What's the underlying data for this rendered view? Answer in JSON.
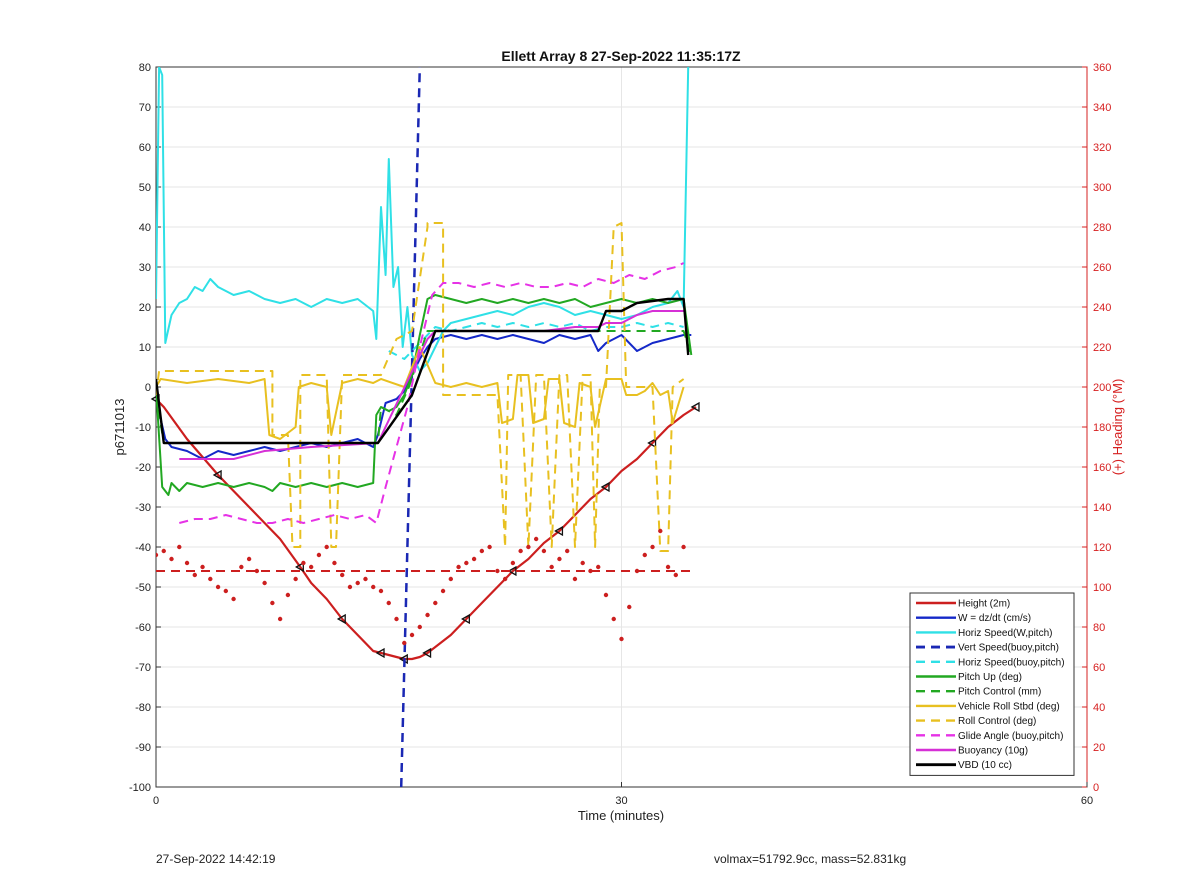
{
  "footer": {
    "timestamp": "27-Sep-2022 14:42:19",
    "summary": "volmax=51792.9cc, mass=52.831kg"
  },
  "chart_data": {
    "type": "line",
    "title": "Ellett Array 8 27-Sep-2022 11:35:17Z",
    "xlabel": "Time (minutes)",
    "ylabel": "p6711013",
    "ylabel_right": "(+) Heading (°M)",
    "xlim": [
      0,
      60
    ],
    "ylim": [
      -100,
      80
    ],
    "ylim_right": [
      0,
      360
    ],
    "xticks": [
      0,
      30,
      60
    ],
    "yticks": [
      -100,
      -90,
      -80,
      -70,
      -60,
      -50,
      -40,
      -30,
      -20,
      -10,
      0,
      10,
      20,
      30,
      40,
      50,
      60,
      70,
      80
    ],
    "yticks_right": [
      0,
      20,
      40,
      60,
      80,
      100,
      120,
      140,
      160,
      180,
      200,
      220,
      240,
      260,
      280,
      300,
      320,
      340,
      360
    ],
    "grid": true,
    "legend_position": "bottom-right",
    "axis_color_right": "#d62020",
    "series": [
      {
        "name": "Height (2m)",
        "color": "#cc1f1f",
        "style": "solid",
        "width": 2.2,
        "markers": "triangle",
        "x": [
          0,
          0.5,
          2,
          4,
          6,
          8,
          9.3,
          10,
          11,
          12,
          13,
          14,
          14.5,
          15,
          15.5,
          16,
          16.5,
          17,
          17.5,
          18,
          19,
          20,
          21,
          22,
          23,
          24,
          25,
          26,
          27,
          28,
          29,
          30,
          31,
          32,
          33,
          34,
          34.8
        ],
        "y": [
          -3,
          -5,
          -13,
          -22,
          -30,
          -38,
          -45,
          -49,
          -53,
          -58,
          -62,
          -66,
          -66.5,
          -67,
          -67.5,
          -68,
          -68,
          -67.5,
          -66.5,
          -65,
          -62,
          -58,
          -54,
          -50,
          -46,
          -43,
          -39,
          -36,
          -32,
          -28,
          -25,
          -21,
          -18,
          -14,
          -10,
          -7,
          -5
        ]
      },
      {
        "name": "W = dz/dt (cm/s)",
        "color": "#1428c8",
        "style": "solid",
        "width": 2,
        "x": [
          0,
          0.3,
          0.6,
          1,
          2,
          3,
          4,
          5,
          6,
          7,
          8,
          9,
          10,
          11,
          12,
          13,
          14,
          14.3,
          14.8,
          15.5,
          16,
          16.5,
          17,
          17.5,
          18,
          19,
          20,
          21,
          22,
          23,
          24,
          25,
          26,
          27,
          28,
          28.5,
          29,
          30,
          31,
          32,
          33,
          34,
          34.5
        ],
        "y": [
          1,
          -8,
          -13,
          -15,
          -16,
          -18,
          -16,
          -17,
          -16,
          -15,
          -16,
          -15,
          -14,
          -15,
          -14,
          -13,
          -15,
          -12,
          -4,
          -3,
          -1,
          3,
          7,
          10,
          12,
          13,
          12,
          13,
          12,
          13,
          12,
          11,
          13,
          12,
          13,
          9,
          11,
          13,
          9,
          11,
          12,
          13,
          13
        ]
      },
      {
        "name": "Horiz Speed(W,pitch)",
        "color": "#2fe0e6",
        "style": "solid",
        "width": 2,
        "x": [
          0,
          0.2,
          0.4,
          0.6,
          1,
          1.5,
          2,
          2.5,
          3,
          3.5,
          4,
          5,
          6,
          7,
          8,
          9,
          10,
          11,
          12,
          13,
          14,
          14.2,
          14.5,
          14.8,
          15,
          15.3,
          15.6,
          15.9,
          16.2,
          16.5,
          17,
          17.5,
          18,
          18.5,
          19,
          20,
          21,
          22,
          23,
          24,
          25,
          26,
          27,
          28,
          29,
          30,
          31,
          32,
          33,
          33.6,
          34,
          34.3
        ],
        "y": [
          22,
          80,
          78,
          11,
          18,
          21,
          22,
          25,
          24,
          27,
          25,
          23,
          24,
          22,
          21,
          22,
          20,
          22,
          21,
          22,
          19,
          12,
          45,
          28,
          57,
          25,
          30,
          10,
          20,
          8,
          4,
          6,
          10,
          14,
          16,
          17,
          18,
          19,
          18,
          20,
          21,
          20,
          18,
          19,
          18,
          17,
          18,
          20,
          21,
          24,
          20,
          80
        ]
      },
      {
        "name": "Vert Speed(buoy,pitch)",
        "color": "#1a28b4",
        "style": "dashed",
        "width": 2.5,
        "x": [
          15.8,
          16.2,
          16.6,
          17
        ],
        "y": [
          -100,
          -40,
          20,
          80
        ]
      },
      {
        "name": "Horiz Speed(buoy,pitch)",
        "color": "#2fe0e6",
        "style": "dashed",
        "width": 2,
        "x": [
          15,
          15.5,
          16,
          16.5,
          17,
          17.5,
          18,
          19,
          20,
          21,
          22,
          23,
          24,
          25,
          26,
          27,
          28,
          29,
          30,
          31,
          32,
          33,
          34
        ],
        "y": [
          9,
          8,
          7,
          9,
          11,
          13,
          15,
          14,
          15,
          16,
          15,
          16,
          15,
          16,
          15,
          16,
          14,
          15,
          15,
          16,
          15,
          16,
          15
        ]
      },
      {
        "name": "Pitch Up (deg)",
        "color": "#22a822",
        "style": "solid",
        "width": 2,
        "x": [
          0,
          0.4,
          0.8,
          1,
          1.5,
          2,
          3,
          4,
          5,
          6,
          7,
          7.5,
          8,
          9,
          10,
          11,
          12,
          13,
          14,
          14.2,
          14.5,
          15,
          15.5,
          16,
          16.5,
          17,
          17.5,
          18,
          19,
          20,
          21,
          22,
          23,
          24,
          25,
          26,
          27,
          28,
          29,
          30,
          31,
          32,
          33,
          34,
          34.5
        ],
        "y": [
          0,
          -25,
          -27,
          -24,
          -26,
          -24,
          -25,
          -24,
          -25,
          -24,
          -25,
          -26,
          -24,
          -25,
          -24,
          -25,
          -24,
          -25,
          -24,
          -7,
          -5,
          -6,
          -5,
          -2,
          3,
          13,
          22,
          23,
          22,
          21,
          22,
          21,
          22,
          21,
          22,
          21,
          22,
          20,
          21,
          22,
          21,
          22,
          21,
          22,
          8
        ]
      },
      {
        "name": "Pitch Control (mm)",
        "color": "#22a822",
        "style": "dashed",
        "width": 2,
        "x": [
          0,
          0.5,
          14.3,
          14.5,
          15.5,
          16.3,
          17.5,
          34,
          34.5
        ],
        "y": [
          -2,
          -14,
          -14,
          -5,
          -7,
          0,
          14,
          14,
          8
        ]
      },
      {
        "name": "Vehicle Roll Stbd (deg)",
        "color": "#e8c020",
        "style": "solid",
        "width": 2,
        "x": [
          0,
          0.3,
          2,
          4,
          6,
          7,
          7.3,
          8,
          9,
          9.2,
          10,
          11,
          11.3,
          12,
          13,
          14,
          14.5,
          16,
          17,
          18,
          19,
          20,
          21,
          22,
          22.3,
          23,
          23.3,
          24,
          24.3,
          25,
          25.3,
          26,
          26.3,
          27,
          27.3,
          28,
          28.3,
          29,
          30,
          30.3,
          31,
          31.5,
          32,
          32.5,
          33,
          33.3,
          34
        ],
        "y": [
          0,
          2,
          1,
          2,
          1,
          2,
          -12,
          -13,
          -10,
          0,
          1,
          0,
          -12,
          1,
          2,
          1,
          2,
          0,
          10,
          1,
          0,
          1,
          0,
          1,
          -9,
          -8,
          3,
          3,
          -9,
          -8,
          2,
          2,
          -9,
          -10,
          1,
          0,
          -10,
          2,
          2,
          -2,
          -2,
          -1,
          1,
          -2,
          -1,
          -9,
          0
        ]
      },
      {
        "name": "Roll Control (deg)",
        "color": "#e8c020",
        "style": "dashed",
        "width": 2,
        "x": [
          0,
          0.2,
          7.5,
          7.5,
          8.5,
          8.8,
          9.3,
          9.3,
          10,
          11,
          11.3,
          11.6,
          12,
          14.5,
          15.5,
          16.5,
          17.5,
          17.5,
          18.5,
          18.5,
          19,
          19.5,
          22,
          22.5,
          22.7,
          23.5,
          24,
          24.5,
          25,
          25.5,
          26,
          26.5,
          27,
          27.5,
          28,
          28.3,
          28.6,
          29,
          29.5,
          30,
          30.3,
          32,
          32.5,
          33,
          33.3,
          34
        ],
        "y": [
          -2,
          4,
          4,
          -12,
          -12,
          -40,
          -40,
          3,
          3,
          3,
          -40,
          -40,
          3,
          3,
          12,
          14,
          40,
          41,
          41,
          -2,
          -2,
          -2,
          -2,
          -40,
          3,
          3,
          -40,
          3,
          3,
          -40,
          3,
          3,
          -40,
          3,
          3,
          -40,
          0,
          0,
          40,
          41,
          0,
          0,
          -41,
          -41,
          0,
          2
        ]
      },
      {
        "name": "Glide Angle (buoy,pitch)",
        "color": "#e632e6",
        "style": "dashed",
        "width": 2,
        "x": [
          1.5,
          2.5,
          3.5,
          4.5,
          5.5,
          6.5,
          7.5,
          8.5,
          9.5,
          10.5,
          11.5,
          12.5,
          13.5,
          14.2,
          14.8,
          15.5,
          16.2,
          17,
          17.8,
          18.5,
          19.5,
          20.5,
          21.5,
          22.5,
          23.5,
          24.5,
          25.5,
          26.5,
          27.5,
          28.5,
          29.5,
          30.5,
          31.5,
          32.5,
          33.5,
          34
        ],
        "y": [
          -34,
          -33,
          -33,
          -32,
          -33,
          -34,
          -34,
          -33,
          -34,
          -33,
          -32,
          -33,
          -32,
          -34,
          -25,
          -15,
          -5,
          10,
          23,
          26,
          26,
          25,
          26,
          25,
          26,
          25,
          25,
          26,
          25,
          27,
          26,
          28,
          27,
          29,
          30,
          31
        ]
      },
      {
        "name": "Buoyancy (10g)",
        "color": "#d630d6",
        "style": "solid",
        "width": 2,
        "x": [
          1.5,
          5,
          7,
          10,
          14.3,
          14.3,
          17.5,
          18,
          20,
          23,
          25,
          27,
          28.5,
          29,
          30,
          31,
          32,
          33,
          34
        ],
        "y": [
          -18,
          -18,
          -16,
          -15,
          -14,
          -14,
          12,
          14,
          14,
          14,
          14,
          15,
          15,
          16,
          16,
          18,
          19,
          19,
          19
        ]
      },
      {
        "name": "VBD (10 cc)",
        "color": "#000000",
        "style": "solid",
        "width": 2.4,
        "x": [
          0,
          0.5,
          14.3,
          14.3,
          16.5,
          18,
          20,
          28.5,
          29,
          30,
          31,
          33,
          34,
          34.3
        ],
        "y": [
          2,
          -14,
          -14,
          -14,
          -2,
          14,
          14,
          14,
          19,
          19,
          21,
          22,
          22,
          8
        ]
      },
      {
        "name": "",
        "axis": "right",
        "color": "#cc1f1f",
        "style": "dashed",
        "width": 2,
        "legend": false,
        "x": [
          0,
          34.5
        ],
        "y": [
          108,
          108
        ]
      },
      {
        "name": "",
        "axis": "right",
        "color": "#cc1f1f",
        "style": "dots",
        "legend": false,
        "x": [
          0,
          0.5,
          1,
          1.5,
          2,
          2.5,
          3,
          3.5,
          4,
          4.5,
          5,
          5.5,
          6,
          6.5,
          7,
          7.5,
          8,
          8.5,
          9,
          9.5,
          10,
          10.5,
          11,
          11.5,
          12,
          12.5,
          13,
          13.5,
          14,
          14.5,
          15,
          15.5,
          16,
          16.5,
          17,
          17.5,
          18,
          18.5,
          19,
          19.5,
          20,
          20.5,
          21,
          21.5,
          22,
          22.5,
          23,
          23.5,
          24,
          24.5,
          25,
          25.5,
          26,
          26.5,
          27,
          27.5,
          28,
          28.5,
          29,
          29.5,
          30,
          30.5,
          31,
          31.5,
          32,
          32.5,
          33,
          33.5,
          34
        ],
        "y": [
          116,
          118,
          114,
          120,
          112,
          106,
          110,
          104,
          100,
          98,
          94,
          110,
          114,
          108,
          102,
          92,
          84,
          96,
          104,
          112,
          110,
          116,
          120,
          112,
          106,
          100,
          102,
          104,
          100,
          98,
          92,
          84,
          72,
          76,
          80,
          86,
          92,
          98,
          104,
          110,
          112,
          114,
          118,
          120,
          108,
          104,
          112,
          118,
          120,
          124,
          118,
          110,
          114,
          118,
          104,
          112,
          108,
          110,
          96,
          84,
          74,
          90,
          108,
          116,
          120,
          128,
          110,
          106,
          120
        ]
      }
    ]
  }
}
